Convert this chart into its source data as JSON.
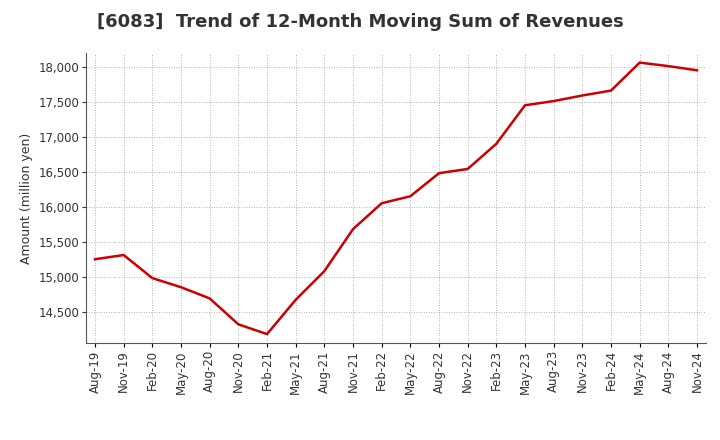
{
  "title": "[6083]  Trend of 12-Month Moving Sum of Revenues",
  "ylabel": "Amount (million yen)",
  "x_labels": [
    "Aug-19",
    "Nov-19",
    "Feb-20",
    "May-20",
    "Aug-20",
    "Nov-20",
    "Feb-21",
    "May-21",
    "Aug-21",
    "Nov-21",
    "Feb-22",
    "May-22",
    "Aug-22",
    "Nov-22",
    "Feb-23",
    "May-23",
    "Aug-23",
    "Nov-23",
    "Feb-24",
    "May-24",
    "Aug-24",
    "Nov-24"
  ],
  "values": [
    15250,
    15310,
    14980,
    14850,
    14690,
    14320,
    14180,
    14670,
    15080,
    15680,
    16050,
    16150,
    16480,
    16540,
    16900,
    17450,
    17510,
    17590,
    17660,
    18060,
    18010,
    17950
  ],
  "line_color": "#cc0000",
  "background_color": "#ffffff",
  "grid_color": "#999999",
  "ylim": [
    14050,
    18200
  ],
  "yticks": [
    14500,
    15000,
    15500,
    16000,
    16500,
    17000,
    17500,
    18000
  ],
  "title_fontsize": 13,
  "title_color": "#333333",
  "label_fontsize": 9,
  "tick_fontsize": 8.5
}
